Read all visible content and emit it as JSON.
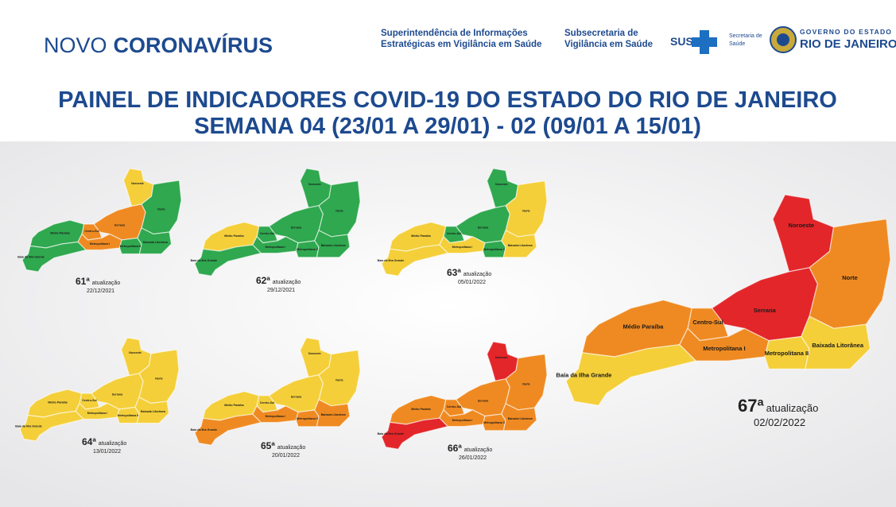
{
  "header": {
    "brand_light": "NOVO",
    "brand_bold": "CORONAVÍRUS",
    "org1": [
      "Superintendência de Informações",
      "Estratégicas em Vigilância em Saúde"
    ],
    "org2": [
      "Subsecretaria de",
      "Vigilância em Saúde"
    ],
    "sus": "SUS",
    "secretaria": [
      "Secretaria de",
      "Saúde"
    ],
    "gov_top": "GOVERNO DO ESTADO",
    "gov_bottom": "RIO DE JANEIRO"
  },
  "title": [
    "PAINEL DE INDICADORES COVID-19 DO ESTADO DO RIO DE JANEIRO",
    "SEMANA 04 (23/01 A 29/01) - 02 (09/01 A 15/01)"
  ],
  "regions": [
    "Noroeste",
    "Norte",
    "Serrana",
    "Centro-Sul",
    "Médio Paraíba",
    "Metropolitana I",
    "Metropolitana II",
    "Baixada Litorânea",
    "Baía da Ilha Grande"
  ],
  "maps": [
    {
      "number": "61ª",
      "label": "atualização",
      "date": "22/12/2021",
      "colors": [
        "#f4cf3a",
        "#2fa84f",
        "#ef8a22",
        "#ef8a22",
        "#2fa84f",
        "#ef8a22",
        "#2fa84f",
        "#2fa84f",
        "#2fa84f"
      ]
    },
    {
      "number": "62ª",
      "label": "atualização",
      "date": "29/12/2021",
      "colors": [
        "#2fa84f",
        "#2fa84f",
        "#2fa84f",
        "#2fa84f",
        "#f4cf3a",
        "#2fa84f",
        "#2fa84f",
        "#2fa84f",
        "#2fa84f"
      ]
    },
    {
      "number": "63ª",
      "label": "atualização",
      "date": "05/01/2022",
      "colors": [
        "#2fa84f",
        "#f4cf3a",
        "#2fa84f",
        "#2fa84f",
        "#f4cf3a",
        "#f4cf3a",
        "#2fa84f",
        "#f4cf3a",
        "#f4cf3a"
      ]
    },
    {
      "number": "64ª",
      "label": "atualização",
      "date": "13/01/2022",
      "colors": [
        "#f4cf3a",
        "#f4cf3a",
        "#f4cf3a",
        "#f4cf3a",
        "#f4cf3a",
        "#f4cf3a",
        "#f4cf3a",
        "#f4cf3a",
        "#f4cf3a"
      ]
    },
    {
      "number": "65ª",
      "label": "atualização",
      "date": "20/01/2022",
      "colors": [
        "#f4cf3a",
        "#f4cf3a",
        "#f4cf3a",
        "#f4cf3a",
        "#f4cf3a",
        "#ef8a22",
        "#ef8a22",
        "#ef8a22",
        "#ef8a22"
      ]
    },
    {
      "number": "66ª",
      "label": "atualização",
      "date": "26/01/2022",
      "colors": [
        "#e3262a",
        "#ef8a22",
        "#ef8a22",
        "#ef8a22",
        "#ef8a22",
        "#ef8a22",
        "#ef8a22",
        "#ef8a22",
        "#e3262a"
      ]
    },
    {
      "number": "67ª",
      "label": "atualização",
      "date": "02/02/2022",
      "colors": [
        "#e3262a",
        "#ef8a22",
        "#e3262a",
        "#ef8a22",
        "#ef8a22",
        "#ef8a22",
        "#f4cf3a",
        "#f4cf3a",
        "#f4cf3a"
      ]
    }
  ]
}
